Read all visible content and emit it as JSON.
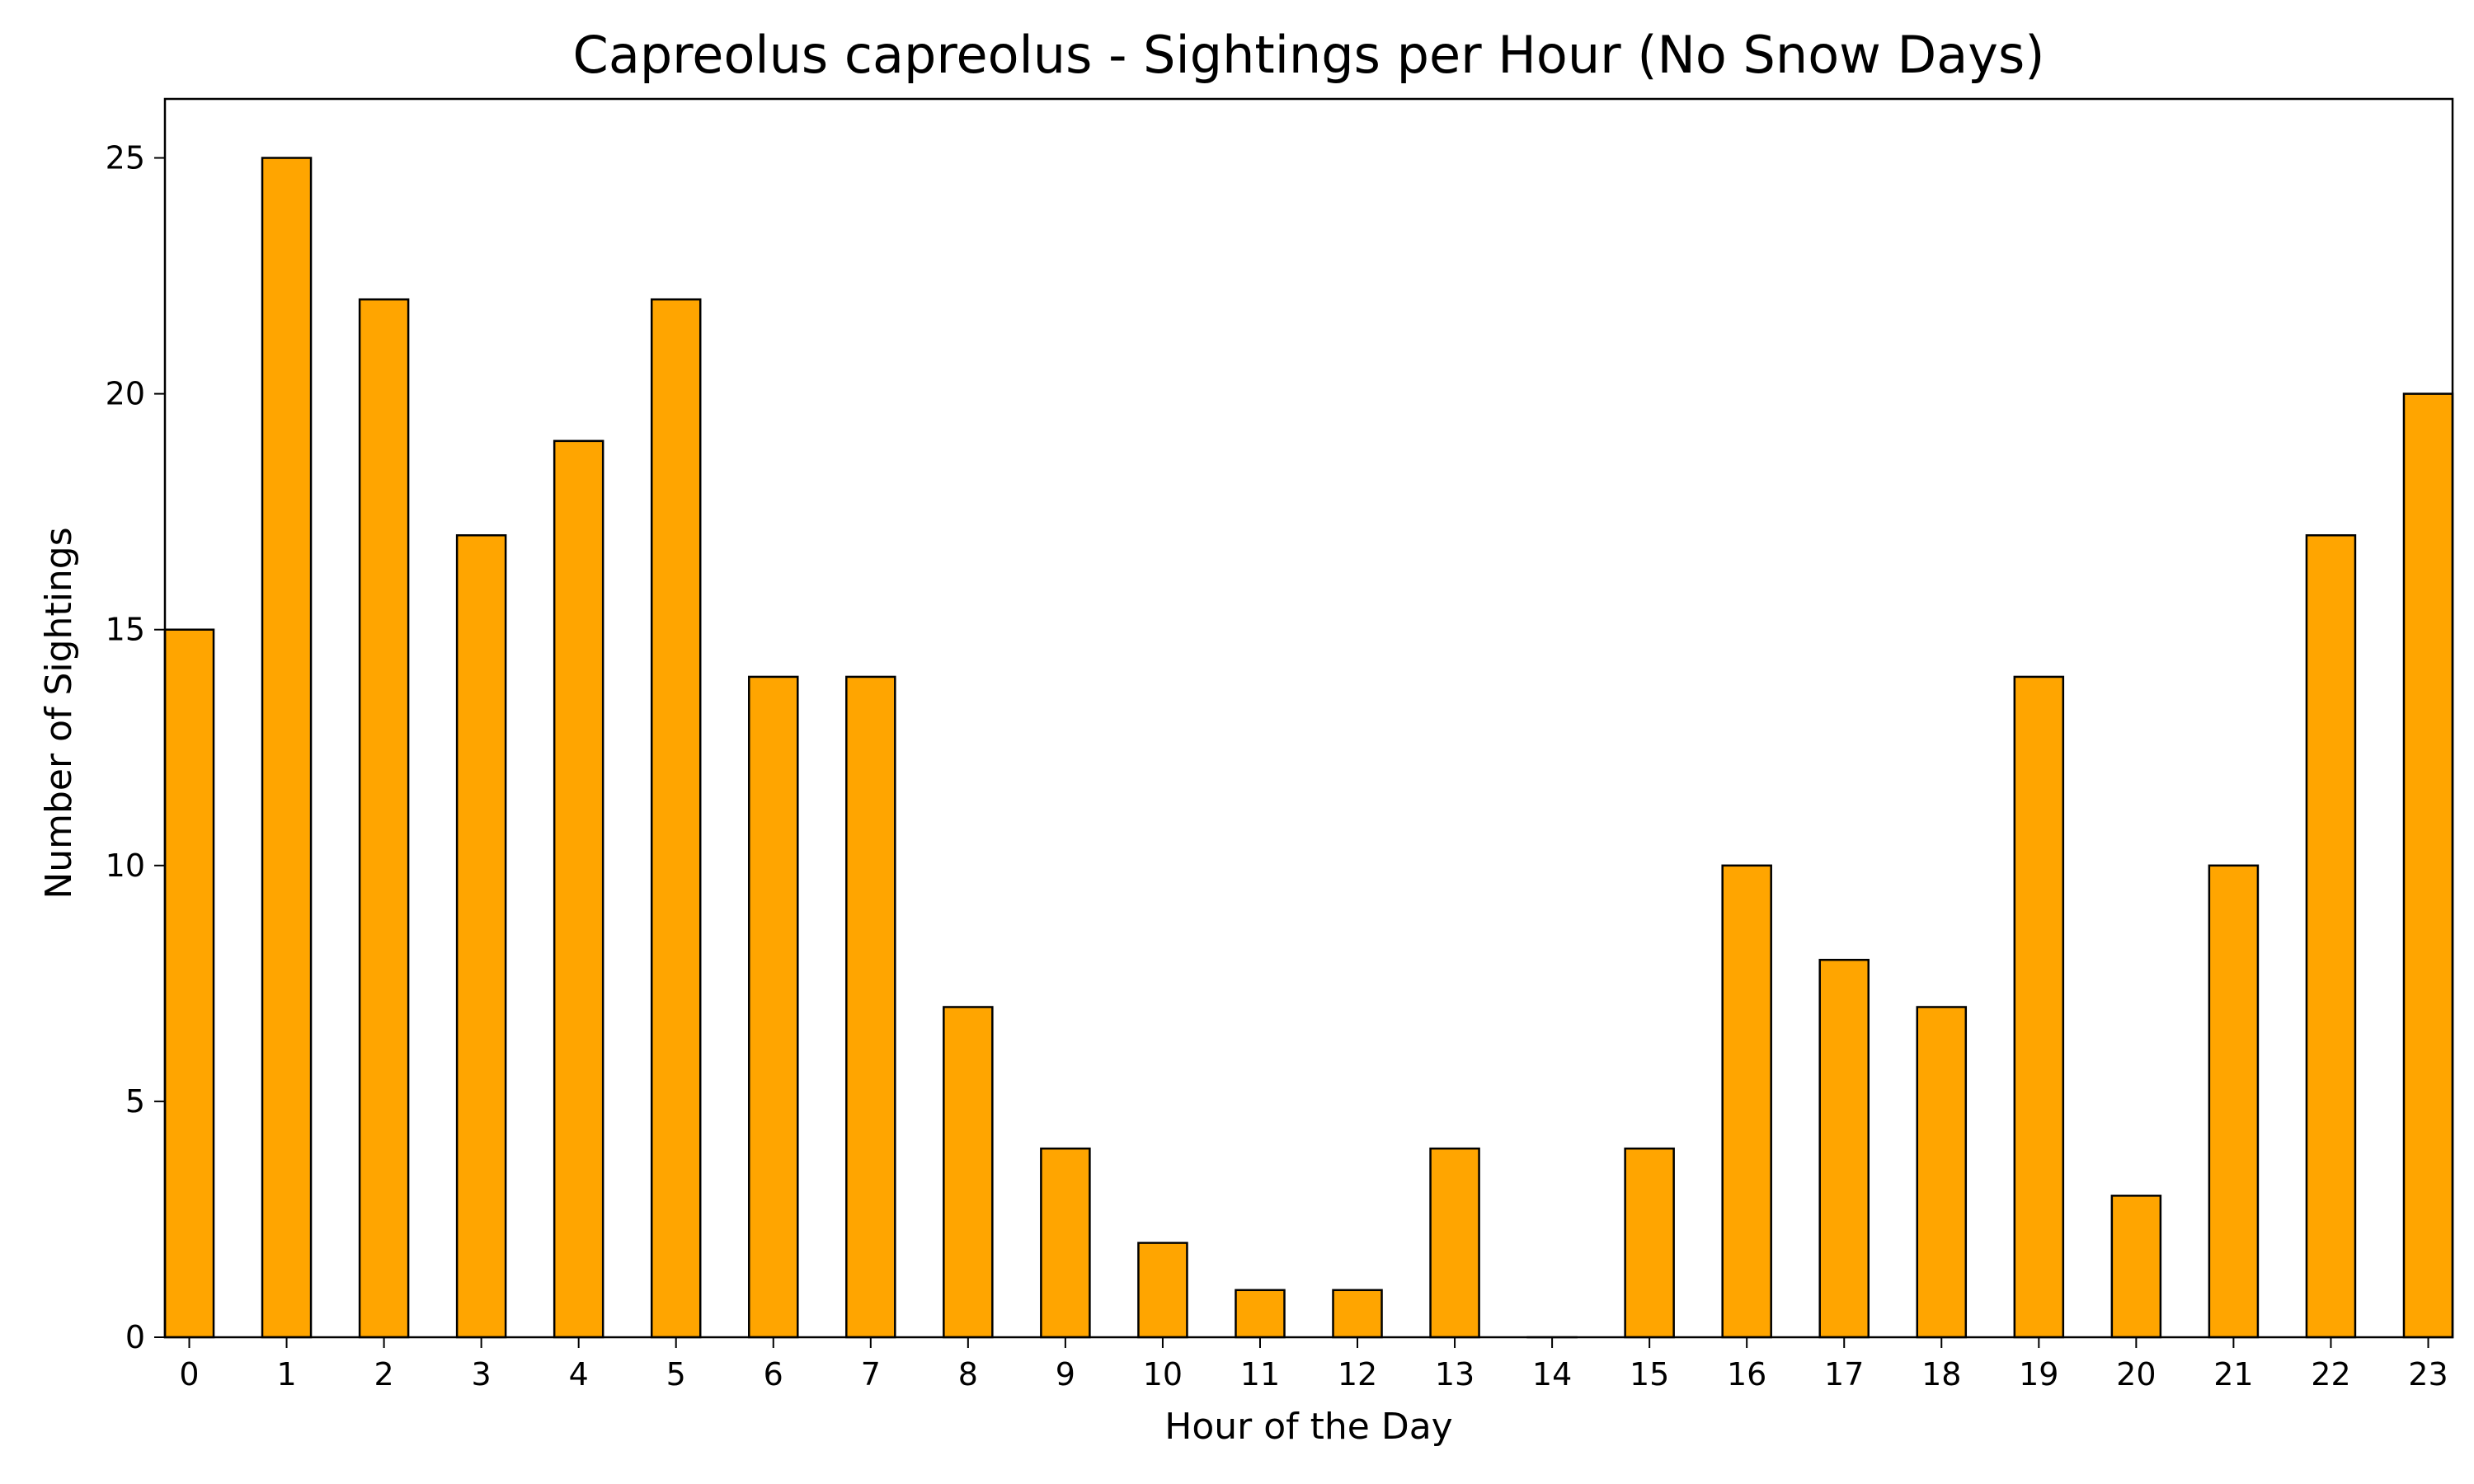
{
  "chart_data": {
    "type": "bar",
    "title": "Capreolus capreolus - Sightings per Hour (No Snow Days)",
    "xlabel": "Hour of the Day",
    "ylabel": "Number of Sightings",
    "categories": [
      "0",
      "1",
      "2",
      "3",
      "4",
      "5",
      "6",
      "7",
      "8",
      "9",
      "10",
      "11",
      "12",
      "13",
      "14",
      "15",
      "16",
      "17",
      "18",
      "19",
      "20",
      "21",
      "22",
      "23"
    ],
    "values": [
      15,
      25,
      22,
      17,
      19,
      22,
      14,
      14,
      7,
      4,
      2,
      1,
      1,
      4,
      0,
      4,
      10,
      8,
      7,
      14,
      3,
      10,
      17,
      20
    ],
    "ylim": [
      0,
      26.25
    ],
    "yticks": [
      0,
      5,
      10,
      15,
      20,
      25
    ],
    "grid": false,
    "legend": "none",
    "bar_color": "#FFA500",
    "edge_color": "#000000"
  }
}
